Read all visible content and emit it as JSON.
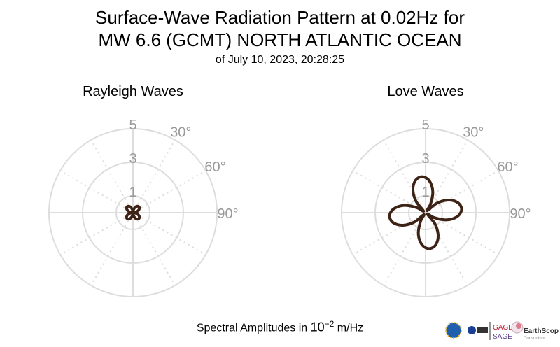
{
  "title_line1": "Surface-Wave Radiation Pattern at 0.02Hz for",
  "title_line2": "MW 6.6 (GCMT) NORTH ATLANTIC OCEAN",
  "subtitle": "of July 10, 2023, 20:28:25",
  "footer": {
    "prefix": "Spectral Amplitudes in ",
    "base": "10",
    "exponent": "−2",
    "unit": " m/Hz"
  },
  "logos": {
    "nsf": "NSF",
    "nasa": "NASA",
    "usgs": "USGS",
    "gage": "GAGE",
    "sage": "SAGE",
    "operated": "Operated by",
    "earthscope": "EarthScope",
    "consortium": "Consortium"
  },
  "colors": {
    "pattern": "#3d2216",
    "grid": "#dddddd",
    "tick_text": "#999999"
  },
  "chart_data": [
    {
      "type": "polar-line",
      "title": "Rayleigh Waves",
      "radial_ticks": [
        "1",
        "3",
        "5"
      ],
      "radial_tick_values": [
        1,
        3,
        5
      ],
      "rlim": [
        0,
        5
      ],
      "angle_tick_labels": [
        "30°",
        "60°",
        "90°"
      ],
      "angle_tick_values": [
        30,
        60,
        90
      ],
      "angle_grid_step": 30,
      "azimuth_deg": [
        0,
        10,
        20,
        30,
        40,
        50,
        60,
        70,
        80,
        90,
        100,
        110,
        120,
        130,
        140,
        150,
        160,
        170,
        180,
        190,
        200,
        210,
        220,
        230,
        240,
        250,
        260,
        270,
        280,
        290,
        300,
        310,
        320,
        330,
        340,
        350
      ],
      "amplitude": [
        0,
        0.17,
        0.32,
        0.43,
        0.49,
        0.49,
        0.43,
        0.32,
        0.17,
        0,
        0.17,
        0.32,
        0.43,
        0.49,
        0.49,
        0.43,
        0.32,
        0.17,
        0,
        0.17,
        0.32,
        0.43,
        0.49,
        0.49,
        0.43,
        0.32,
        0.17,
        0,
        0.17,
        0.32,
        0.43,
        0.49,
        0.49,
        0.43,
        0.32,
        0.17
      ]
    },
    {
      "type": "polar-line",
      "title": "Love Waves",
      "radial_ticks": [
        "1",
        "3",
        "5"
      ],
      "radial_tick_values": [
        1,
        3,
        5
      ],
      "rlim": [
        0,
        5
      ],
      "angle_tick_labels": [
        "30°",
        "60°",
        "90°"
      ],
      "angle_tick_values": [
        30,
        60,
        90
      ],
      "angle_grid_step": 30,
      "azimuth_deg": [
        0,
        10,
        20,
        30,
        40,
        50,
        60,
        70,
        80,
        90,
        100,
        110,
        120,
        130,
        140,
        150,
        160,
        170,
        180,
        190,
        200,
        210,
        220,
        230,
        240,
        250,
        260,
        270,
        280,
        290,
        300,
        310,
        320,
        330,
        340,
        350
      ],
      "amplitude": [
        2.09,
        1.78,
        1.26,
        0.59,
        0.15,
        0.87,
        1.49,
        1.93,
        2.14,
        2.09,
        1.78,
        1.26,
        0.59,
        0.15,
        0.87,
        1.49,
        1.93,
        2.14,
        2.09,
        1.78,
        1.26,
        0.59,
        0.15,
        0.87,
        1.49,
        1.93,
        2.14,
        2.09,
        1.78,
        1.26,
        0.59,
        0.15,
        0.87,
        1.49,
        1.93,
        2.14
      ]
    }
  ]
}
